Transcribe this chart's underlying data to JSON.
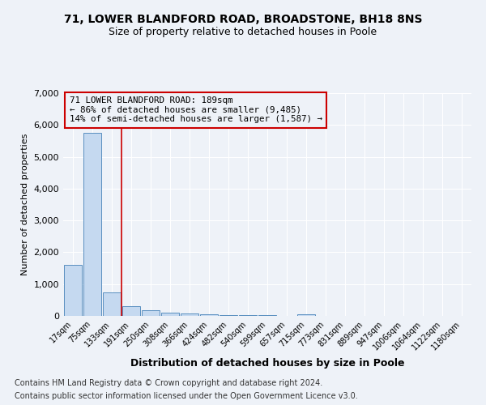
{
  "title1": "71, LOWER BLANDFORD ROAD, BROADSTONE, BH18 8NS",
  "title2": "Size of property relative to detached houses in Poole",
  "xlabel": "Distribution of detached houses by size in Poole",
  "ylabel": "Number of detached properties",
  "categories": [
    "17sqm",
    "75sqm",
    "133sqm",
    "191sqm",
    "250sqm",
    "308sqm",
    "366sqm",
    "424sqm",
    "482sqm",
    "540sqm",
    "599sqm",
    "657sqm",
    "715sqm",
    "773sqm",
    "831sqm",
    "889sqm",
    "947sqm",
    "1006sqm",
    "1064sqm",
    "1122sqm",
    "1180sqm"
  ],
  "values": [
    1600,
    5750,
    750,
    300,
    175,
    100,
    65,
    45,
    30,
    20,
    15,
    10,
    60,
    8,
    5,
    5,
    3,
    3,
    2,
    2,
    2
  ],
  "bar_color": "#c5d9f0",
  "bar_edge_color": "#5a8fc0",
  "red_line_x": 2.5,
  "annotation_line1": "71 LOWER BLANDFORD ROAD: 189sqm",
  "annotation_line2": "← 86% of detached houses are smaller (9,485)",
  "annotation_line3": "14% of semi-detached houses are larger (1,587) →",
  "annotation_color": "#cc0000",
  "ylim": [
    0,
    7000
  ],
  "yticks": [
    0,
    1000,
    2000,
    3000,
    4000,
    5000,
    6000,
    7000
  ],
  "footnote1": "Contains HM Land Registry data © Crown copyright and database right 2024.",
  "footnote2": "Contains public sector information licensed under the Open Government Licence v3.0.",
  "background_color": "#eef2f8",
  "grid_color": "#ffffff",
  "title1_fontsize": 10,
  "title2_fontsize": 9
}
